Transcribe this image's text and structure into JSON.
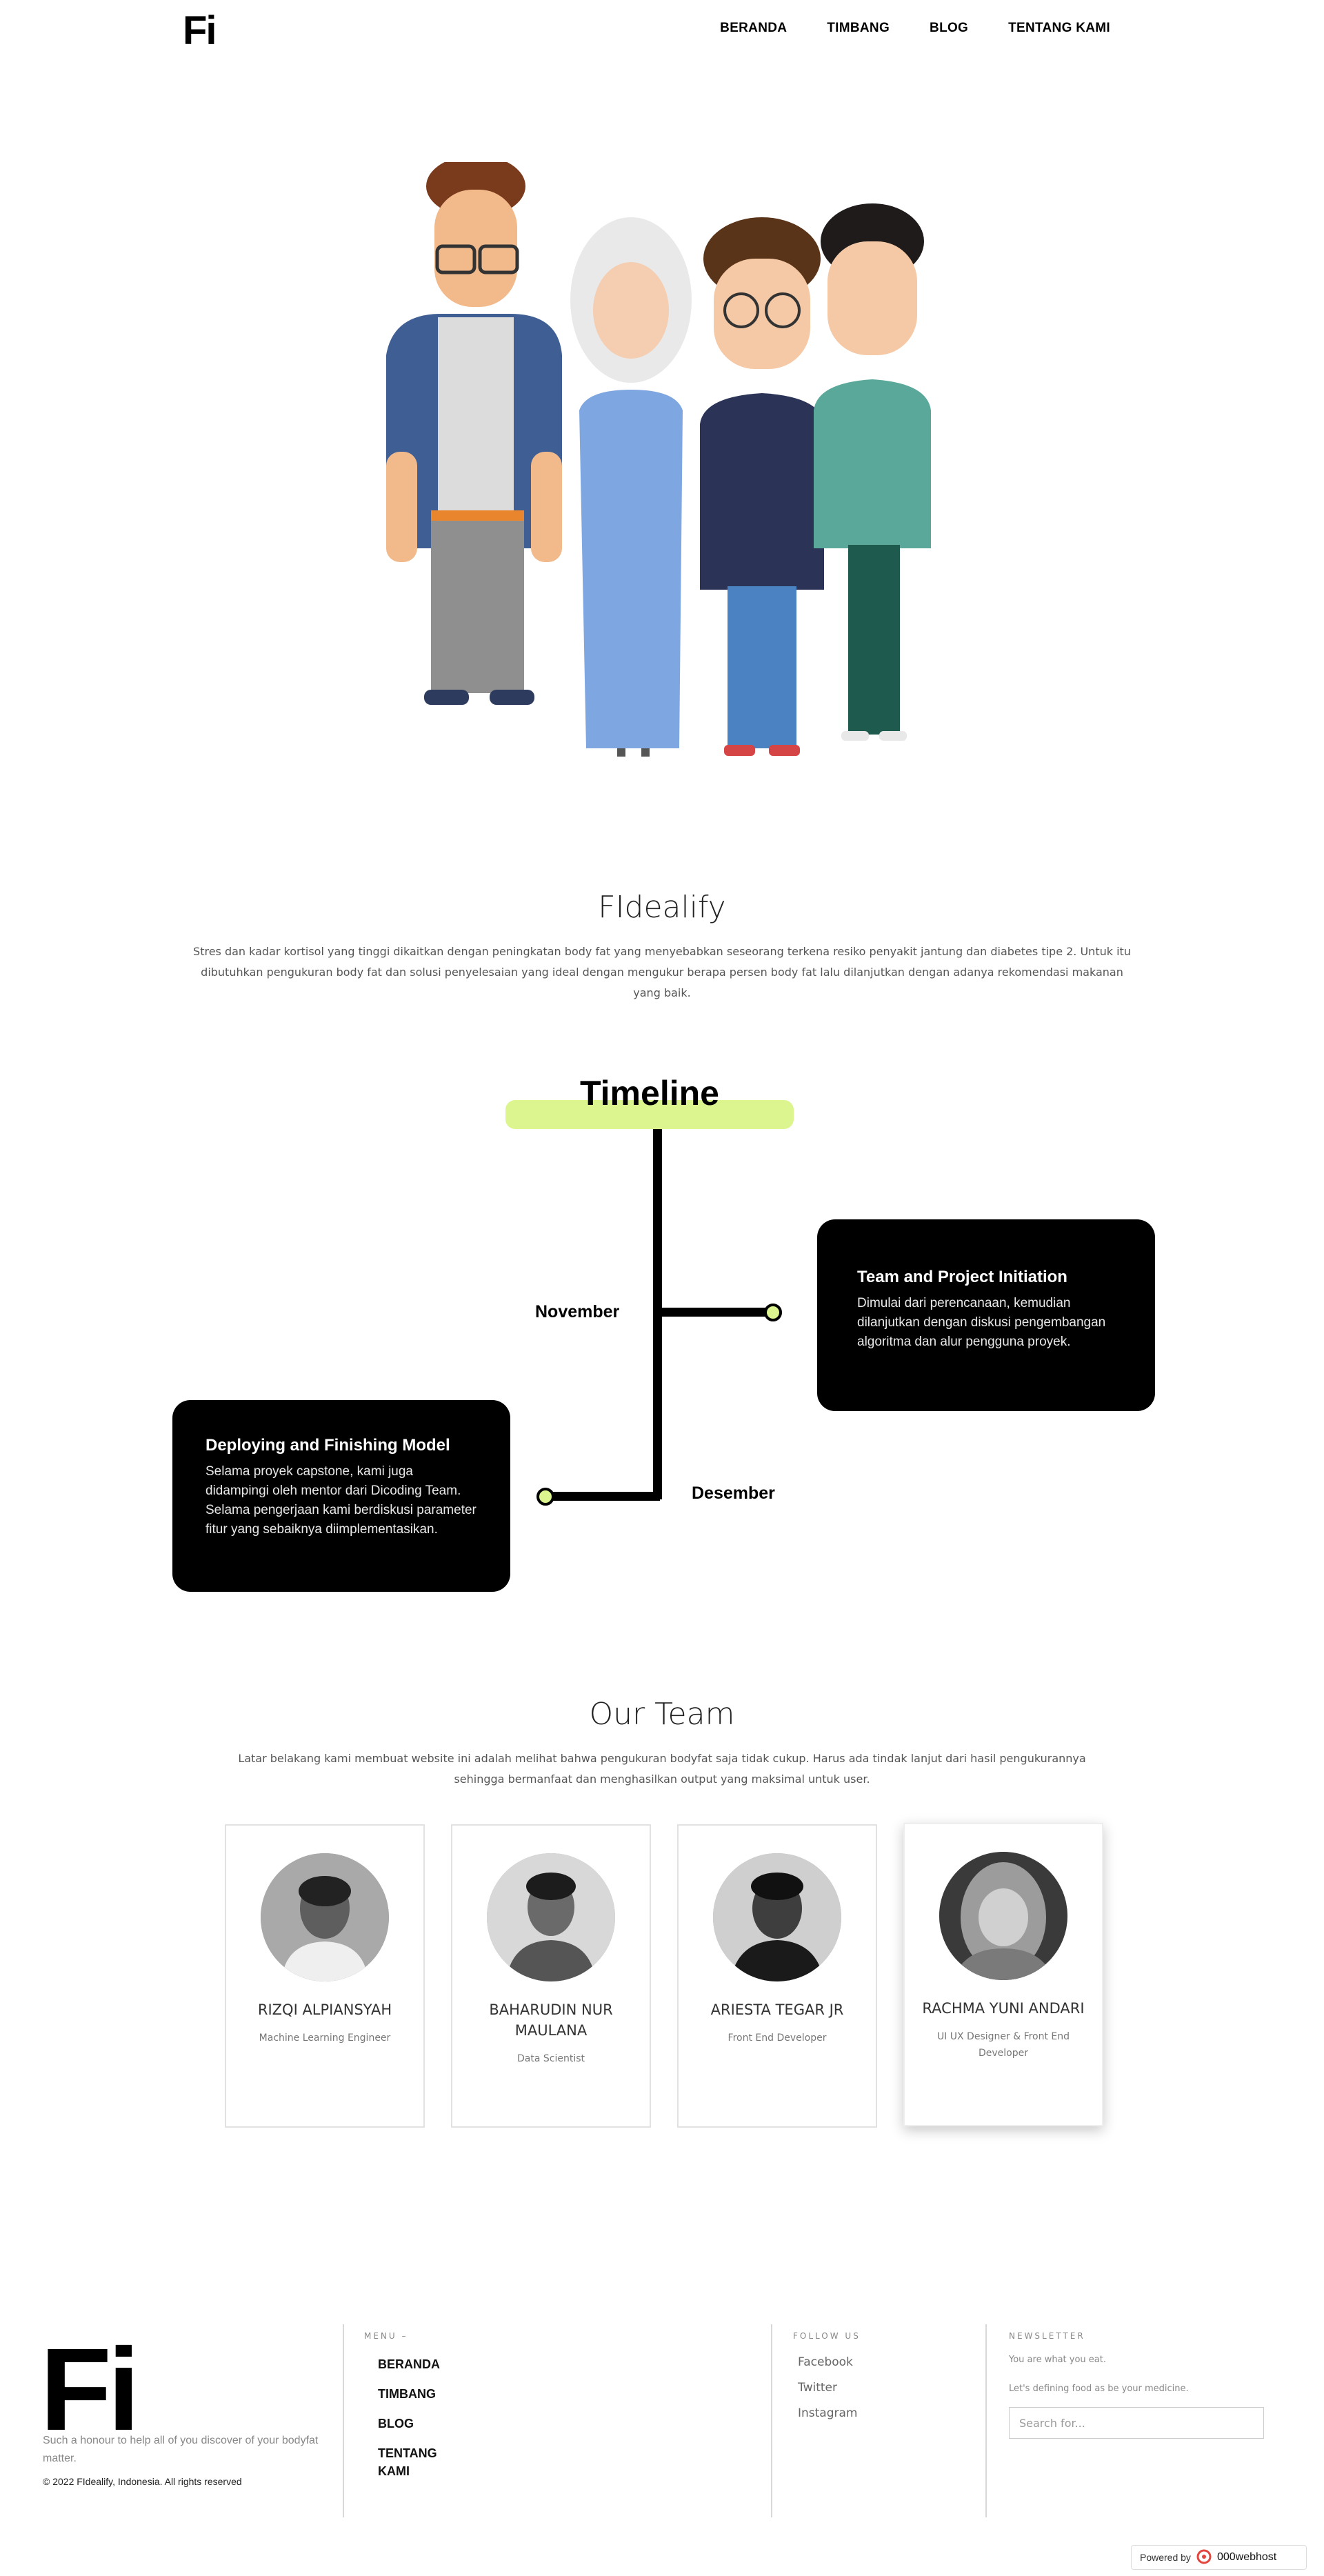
{
  "nav": {
    "logo": "Fi",
    "links": [
      "BERANDA",
      "TIMBANG",
      "BLOG",
      "TENTANG KAMI"
    ]
  },
  "about": {
    "title": "FIdealify",
    "text": "Stres dan kadar kortisol yang tinggi dikaitkan dengan peningkatan body fat yang menyebabkan seseorang terkena resiko penyakit jantung dan diabetes tipe 2. Untuk itu dibutuhkan pengukuran body fat dan solusi penyelesaian yang ideal dengan mengukur berapa persen body fat lalu dilanjutkan dengan adanya rekomendasi makanan yang baik."
  },
  "timeline": {
    "title": "Timeline",
    "items": [
      {
        "month": "November",
        "card_title": "Team and Project Initiation",
        "card_body": "Dimulai dari perencanaan, kemudian dilanjutkan dengan diskusi pengembangan algoritma dan alur pengguna proyek."
      },
      {
        "month": "Desember",
        "card_title": "Deploying and Finishing Model",
        "card_body": "Selama proyek capstone, kami juga didampingi oleh mentor dari Dicoding Team. Selama pengerjaan kami berdiskusi parameter fitur yang sebaiknya diimplementasikan."
      }
    ]
  },
  "team": {
    "title": "Our Team",
    "text": "Latar belakang kami membuat website ini adalah melihat bahwa pengukuran bodyfat saja tidak cukup. Harus ada tindak lanjut dari hasil pengukurannya sehingga bermanfaat dan menghasilkan output yang maksimal untuk user.",
    "members": [
      {
        "name": "RIZQI ALPIANSYAH",
        "role": "Machine Learning Engineer"
      },
      {
        "name": "BAHARUDIN NUR MAULANA",
        "role": "Data Scientist"
      },
      {
        "name": "ARIESTA TEGAR JR",
        "role": "Front End Developer"
      },
      {
        "name": "RACHMA YUNI ANDARI",
        "role": "UI UX Designer & Front End Developer"
      }
    ]
  },
  "footer": {
    "logo": "Fi",
    "tagline": "Such a honour to help all of you discover of your bodyfat matter.",
    "copyright": "© 2022 FIdealify, Indonesia. All rights reserved",
    "menu_heading": "MENU –",
    "menu_items": [
      "BERANDA",
      "TIMBANG",
      "BLOG",
      "TENTANG KAMI"
    ],
    "follow_heading": "FOLLOW US",
    "follow_items": [
      "Facebook",
      "Twitter",
      "Instagram"
    ],
    "newsletter_heading": "NEWSLETTER",
    "newsletter_line1": "You are what you eat.",
    "newsletter_line2": "Let's defining food as be your medicine.",
    "search_placeholder": "Search for..."
  },
  "powered": {
    "label": "Powered by",
    "brand": "000webhost"
  },
  "colors": {
    "accent": "#dcf58f",
    "card_bg": "#000000",
    "text_muted": "#555555"
  }
}
